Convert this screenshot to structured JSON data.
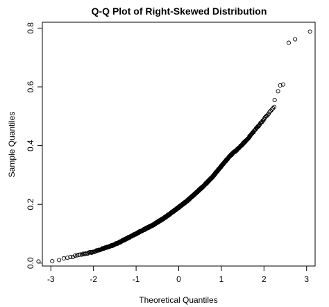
{
  "chart_data": {
    "type": "scatter",
    "title": "Q-Q Plot of Right-Skewed Distribution",
    "xlabel": "Theoretical Quantiles",
    "ylabel": "Sample Quantiles",
    "xlim": [
      -3.2,
      3.2
    ],
    "ylim": [
      -0.01,
      0.82
    ],
    "xticks": [
      -3,
      -2,
      -1,
      0,
      1,
      2,
      3
    ],
    "yticks": [
      0.0,
      0.2,
      0.4,
      0.6,
      0.8
    ],
    "xtick_labels": [
      "-3",
      "-2",
      "-1",
      "0",
      "1",
      "2",
      "3"
    ],
    "ytick_labels": [
      "0.0",
      "0.2",
      "0.4",
      "0.6",
      "0.8"
    ],
    "grid": false,
    "legend": "none",
    "point_style": "open-circle",
    "point_color": "#000000",
    "n_points": 1000,
    "quantile_curve": {
      "x": [
        -3.1,
        -2.8,
        -2.6,
        -2.4,
        -2.2,
        -2.0,
        -1.8,
        -1.6,
        -1.4,
        -1.2,
        -1.0,
        -0.8,
        -0.6,
        -0.4,
        -0.2,
        0.0,
        0.2,
        0.4,
        0.6,
        0.8,
        1.0,
        1.2,
        1.4,
        1.6,
        1.8,
        2.0,
        2.2
      ],
      "y": [
        0.005,
        0.01,
        0.018,
        0.025,
        0.032,
        0.038,
        0.048,
        0.058,
        0.07,
        0.085,
        0.1,
        0.115,
        0.13,
        0.148,
        0.168,
        0.19,
        0.212,
        0.238,
        0.265,
        0.295,
        0.33,
        0.365,
        0.39,
        0.42,
        0.455,
        0.49,
        0.525
      ]
    },
    "tail_points": [
      {
        "x": 2.25,
        "y": 0.555
      },
      {
        "x": 2.33,
        "y": 0.585
      },
      {
        "x": 2.38,
        "y": 0.605
      },
      {
        "x": 2.45,
        "y": 0.608
      },
      {
        "x": 2.58,
        "y": 0.75
      },
      {
        "x": 2.73,
        "y": 0.762
      },
      {
        "x": 3.08,
        "y": 0.788
      }
    ]
  }
}
